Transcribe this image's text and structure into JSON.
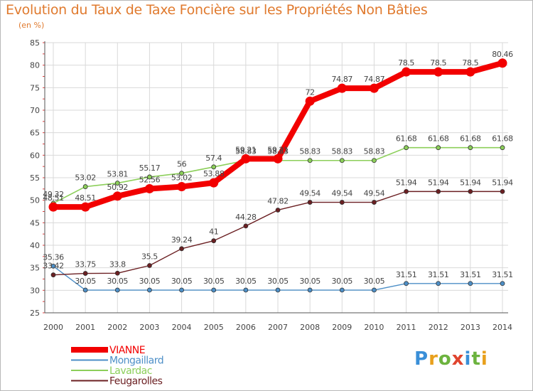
{
  "header": {
    "title": "Evolution du Taux de Taxe Foncière sur les Propriétés Non Bâties",
    "unit": "(en %)"
  },
  "logo": {
    "text": "Proxiti",
    "colors": [
      "#3a8fd8",
      "#e8a01c",
      "#6cb33e",
      "#e0442e",
      "#3a8fd8",
      "#6cb33e",
      "#e8a01c"
    ]
  },
  "chart_data": {
    "type": "line",
    "title": "Evolution du Taux de Taxe Foncière sur les Propriétés Non Bâties",
    "ylabel": "(en %)",
    "xlabel": "",
    "ylim": [
      25,
      85
    ],
    "yticks": [
      25,
      30,
      35,
      40,
      45,
      50,
      55,
      60,
      65,
      70,
      75,
      80,
      85
    ],
    "grid": true,
    "legend_position": "bottom-left",
    "x": [
      "2000",
      "2001",
      "2002",
      "2003",
      "2004",
      "2005",
      "2006",
      "2007",
      "2008",
      "2009",
      "2010",
      "2011",
      "2012",
      "2013",
      "2014"
    ],
    "series": [
      {
        "name": "Mongaillard",
        "color": "#4d8fc7",
        "values": [
          35.36,
          30.05,
          30.05,
          30.05,
          30.05,
          30.05,
          30.05,
          30.05,
          30.05,
          30.05,
          30.05,
          31.51,
          31.51,
          31.51,
          31.51
        ],
        "labels": [
          "35.36",
          "30.05",
          "30.05",
          "30.05",
          "30.05",
          "30.05",
          "30.05",
          "30.05",
          "30.05",
          "30.05",
          "30.05",
          "31.51",
          "31.51",
          "31.51",
          "31.51"
        ]
      },
      {
        "name": "Feugarolles",
        "color": "#6b1f22",
        "values": [
          33.42,
          33.75,
          33.8,
          35.5,
          39.24,
          41,
          44.28,
          47.82,
          49.54,
          49.54,
          49.54,
          51.94,
          51.94,
          51.94,
          51.94
        ],
        "labels": [
          "33.42",
          "33.75",
          "33.8",
          "35.5",
          "39.24",
          "41",
          "44.28",
          "47.82",
          "49.54",
          "49.54",
          "49.54",
          "51.94",
          "51.94",
          "51.94",
          "51.94"
        ]
      },
      {
        "name": "Lavardac",
        "color": "#8ccf5a",
        "values": [
          49.32,
          53.02,
          53.81,
          55.17,
          56,
          57.4,
          58.83,
          58.83,
          58.83,
          58.83,
          58.83,
          61.68,
          61.68,
          61.68,
          61.68
        ],
        "labels": [
          "49.32",
          "53.02",
          "53.81",
          "55.17",
          "56",
          "57.4",
          "58.83",
          "58.83",
          "58.83",
          "58.83",
          "58.83",
          "61.68",
          "61.68",
          "61.68",
          "61.68"
        ]
      },
      {
        "name": "VIANNE",
        "color": "#f20000",
        "values": [
          48.51,
          48.51,
          50.92,
          52.56,
          53.02,
          53.88,
          59.21,
          59.21,
          72,
          74.87,
          74.87,
          78.5,
          78.5,
          78.5,
          80.46
        ],
        "labels": [
          "48.51",
          "48.51",
          "50.92",
          "52.56",
          "53.02",
          "53.88",
          "59.21",
          "59.21",
          "72",
          "74.87",
          "74.87",
          "78.5",
          "78.5",
          "78.5",
          "80.46"
        ]
      }
    ],
    "legend": [
      "VIANNE",
      "Mongaillard",
      "Lavardac",
      "Feugarolles"
    ]
  }
}
